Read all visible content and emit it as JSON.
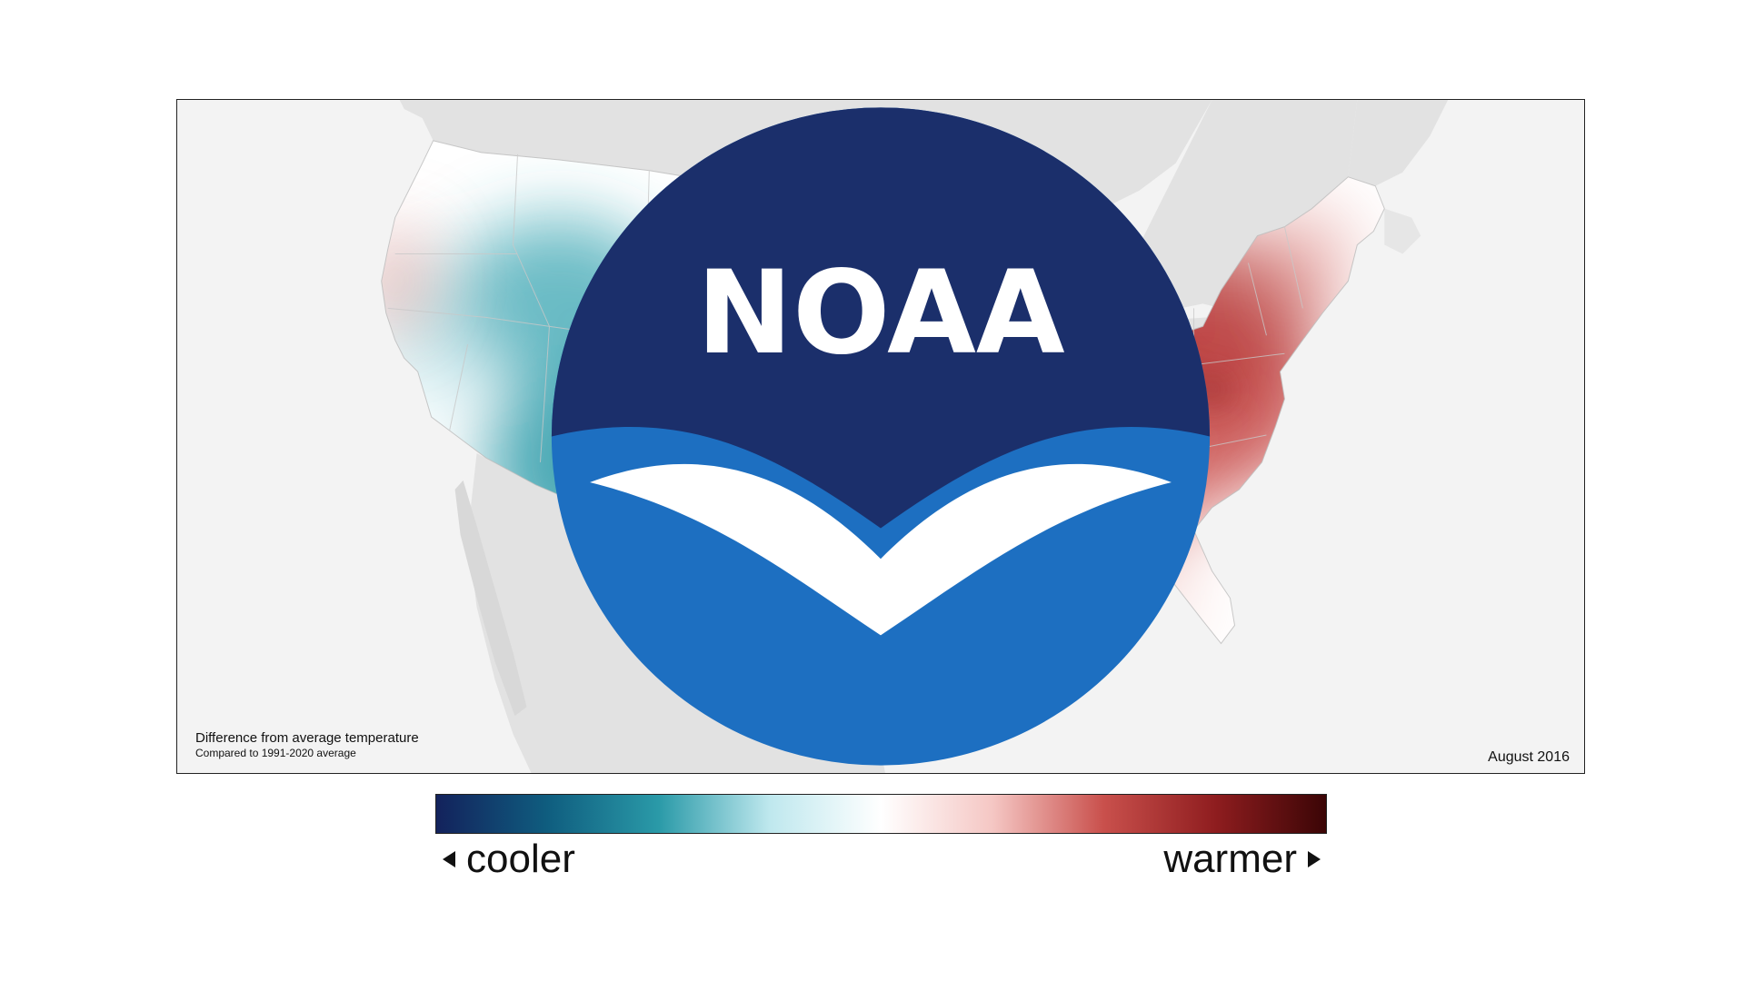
{
  "map": {
    "caption_title": "Difference from average temperature",
    "caption_subtitle": "Compared to 1991-2020 average",
    "date": "August 2016",
    "logo_text": "NOAA"
  },
  "legend": {
    "low_label": "cooler",
    "high_label": "warmer",
    "colors": [
      "#13225c",
      "#0f5d7f",
      "#2a9aa8",
      "#bfe8ee",
      "#ffffff",
      "#f5c7c4",
      "#c9504c",
      "#8f1d1f",
      "#3b0506"
    ]
  },
  "colors": {
    "land_base": "#ffffff",
    "background_land": "#e2e2e2",
    "water": "#f3f3f3",
    "cool": "#2a9aa8",
    "warm": "#c9504c"
  }
}
